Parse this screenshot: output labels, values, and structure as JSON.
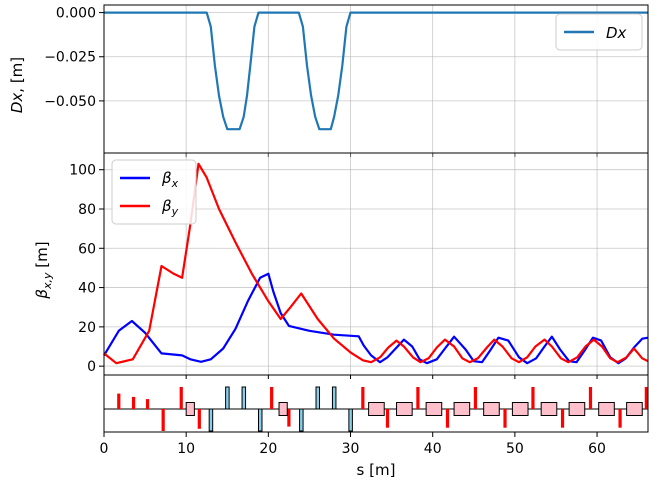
{
  "chart_data": [
    {
      "type": "line",
      "ylabel": "Dx, [m]",
      "ylabel_var": "Dx",
      "ylabel_unit": ", [m]",
      "xlim": [
        0,
        66.2
      ],
      "ylim": [
        -0.0795,
        0.0043
      ],
      "yticks": [
        0.0,
        -0.025,
        -0.05
      ],
      "ytick_labels": [
        "0.000",
        "−0.025",
        "−0.050"
      ],
      "grid": true,
      "legend_position": "upper-right",
      "series": [
        {
          "name": "Dx",
          "color": "#1f77b4",
          "x": [
            0,
            12.5,
            13.0,
            13.5,
            14.0,
            14.5,
            15.0,
            15.5,
            16.0,
            16.5,
            17.0,
            17.4,
            17.8,
            18.3,
            18.8,
            19.3,
            23.7,
            24.2,
            24.7,
            25.2,
            25.7,
            26.2,
            26.7,
            27.2,
            27.6,
            28.0,
            28.5,
            29.0,
            29.5,
            30.0,
            66.2
          ],
          "y": [
            0,
            0,
            -0.008,
            -0.03,
            -0.047,
            -0.059,
            -0.066,
            -0.066,
            -0.066,
            -0.066,
            -0.059,
            -0.047,
            -0.03,
            -0.008,
            0,
            0,
            0,
            -0.008,
            -0.03,
            -0.047,
            -0.059,
            -0.066,
            -0.066,
            -0.066,
            -0.066,
            -0.059,
            -0.047,
            -0.03,
            -0.008,
            0,
            0
          ]
        }
      ]
    },
    {
      "type": "line",
      "ylabel": "βx,y [m]",
      "xlim": [
        0,
        66.2
      ],
      "ylim": [
        -4.5,
        108.5
      ],
      "yticks": [
        0,
        20,
        40,
        60,
        80,
        100
      ],
      "ytick_labels": [
        "0",
        "20",
        "40",
        "60",
        "80",
        "100"
      ],
      "grid": true,
      "legend_position": "upper-left",
      "series": [
        {
          "name": "βx",
          "label_sub": "x",
          "color": "#0000ff",
          "x": [
            0,
            1.8,
            3.4,
            5.0,
            7.0,
            9.5,
            10.5,
            11.8,
            13.0,
            14.5,
            16.0,
            17.5,
            19.0,
            20.0,
            20.6,
            21.5,
            22.5,
            25.0,
            28.0,
            31.0,
            31.6,
            32.5,
            33.6,
            34.5,
            35.5,
            36.5,
            37.5,
            38.4,
            39.3,
            40.5,
            41.5,
            42.6,
            44.0,
            45.0,
            46.0,
            47.0,
            48.0,
            49.2,
            50.5,
            51.5,
            52.6,
            53.6,
            54.5,
            55.5,
            56.6,
            57.5,
            58.5,
            59.5,
            60.5,
            61.6,
            62.6,
            63.5,
            64.5,
            65.5,
            66.2
          ],
          "y": [
            5.5,
            18.0,
            23.0,
            17.0,
            6.5,
            5.5,
            3.5,
            2.2,
            3.5,
            9.0,
            19.0,
            33.0,
            45.0,
            47.0,
            38.0,
            27.0,
            20.5,
            18.0,
            16.0,
            15.2,
            10.5,
            5.5,
            2.0,
            4.5,
            9.0,
            13.5,
            10.0,
            3.5,
            1.5,
            3.5,
            9.0,
            15.0,
            8.5,
            2.5,
            2.0,
            8.0,
            14.5,
            13.0,
            4.5,
            1.5,
            4.0,
            10.0,
            15.0,
            8.5,
            2.5,
            2.0,
            8.0,
            14.5,
            13.0,
            4.5,
            1.5,
            4.0,
            9.5,
            14.0,
            14.5
          ]
        },
        {
          "name": "βy",
          "label_sub": "y",
          "color": "#ff0000",
          "x": [
            0,
            1.5,
            3.5,
            5.5,
            7.0,
            8.5,
            9.5,
            10.5,
            11.5,
            12.5,
            14.0,
            16.0,
            18.0,
            20.0,
            21.5,
            22.7,
            24.0,
            26.0,
            28.0,
            30.0,
            31.5,
            32.5,
            33.6,
            34.6,
            35.6,
            36.5,
            37.6,
            38.5,
            39.5,
            40.5,
            41.5,
            42.6,
            43.6,
            44.5,
            45.5,
            46.6,
            47.5,
            48.5,
            49.6,
            50.5,
            51.5,
            52.5,
            53.6,
            54.5,
            55.6,
            56.5,
            57.6,
            58.6,
            59.6,
            60.6,
            61.6,
            62.5,
            63.6,
            64.5,
            65.5,
            66.2
          ],
          "y": [
            6.5,
            1.5,
            3.5,
            18.0,
            51.0,
            47.0,
            45.0,
            72.0,
            103.0,
            96.0,
            80.0,
            63.0,
            47.0,
            33.0,
            24.0,
            30.0,
            37.0,
            24.0,
            14.0,
            7.0,
            3.0,
            2.0,
            4.5,
            9.5,
            13.0,
            10.0,
            4.5,
            2.0,
            4.0,
            9.5,
            13.5,
            10.0,
            4.0,
            2.0,
            4.0,
            9.5,
            13.5,
            10.0,
            4.0,
            2.0,
            4.5,
            10.0,
            13.5,
            10.0,
            4.0,
            2.0,
            4.5,
            10.0,
            13.5,
            10.0,
            4.0,
            2.0,
            4.5,
            9.0,
            4.0,
            2.5
          ]
        }
      ]
    },
    {
      "type": "lattice",
      "xlabel": "s [m]",
      "xlim": [
        0,
        66.2
      ],
      "xticks": [
        0,
        10,
        20,
        30,
        40,
        50,
        60
      ],
      "xtick_labels": [
        "0",
        "10",
        "20",
        "30",
        "40",
        "50",
        "60"
      ],
      "colors": {
        "quad": "#ff0000",
        "bend": "#ffc0cb",
        "sext": "#87ceeb"
      },
      "quads": [
        {
          "s": 1.8,
          "k": 0.7
        },
        {
          "s": 3.6,
          "k": 0.55
        },
        {
          "s": 5.3,
          "k": 0.45
        },
        {
          "s": 7.2,
          "k": -1.0
        },
        {
          "s": 9.4,
          "k": 1.0
        },
        {
          "s": 11.6,
          "k": -0.9
        },
        {
          "s": 20.4,
          "k": 1.0
        },
        {
          "s": 22.5,
          "k": -0.8
        },
        {
          "s": 31.5,
          "k": 1.0
        },
        {
          "s": 34.5,
          "k": -0.85
        },
        {
          "s": 38.2,
          "k": 1.0
        },
        {
          "s": 41.8,
          "k": -0.85
        },
        {
          "s": 45.2,
          "k": 1.0
        },
        {
          "s": 48.8,
          "k": -0.85
        },
        {
          "s": 52.2,
          "k": 1.0
        },
        {
          "s": 55.8,
          "k": -0.85
        },
        {
          "s": 59.2,
          "k": 1.0
        },
        {
          "s": 62.8,
          "k": -0.85
        },
        {
          "s": 66.0,
          "k": 1.0
        }
      ],
      "bends": [
        {
          "s0": 10.0,
          "s1": 11.0
        },
        {
          "s0": 21.3,
          "s1": 22.3
        },
        {
          "s0": 32.2,
          "s1": 34.1
        },
        {
          "s0": 35.6,
          "s1": 37.5
        },
        {
          "s0": 39.2,
          "s1": 41.1
        },
        {
          "s0": 42.6,
          "s1": 44.5
        },
        {
          "s0": 46.2,
          "s1": 48.1
        },
        {
          "s0": 49.7,
          "s1": 51.6
        },
        {
          "s0": 53.2,
          "s1": 55.1
        },
        {
          "s0": 56.6,
          "s1": 58.5
        },
        {
          "s0": 60.2,
          "s1": 62.1
        },
        {
          "s0": 63.6,
          "s1": 65.5
        }
      ],
      "sexts": [
        {
          "s0": 12.8,
          "s1": 13.2,
          "dir": -1
        },
        {
          "s0": 14.8,
          "s1": 15.2,
          "dir": 1
        },
        {
          "s0": 16.8,
          "s1": 17.2,
          "dir": 1
        },
        {
          "s0": 18.8,
          "s1": 19.2,
          "dir": -1
        },
        {
          "s0": 23.8,
          "s1": 24.2,
          "dir": -1
        },
        {
          "s0": 25.8,
          "s1": 26.2,
          "dir": 1
        },
        {
          "s0": 27.8,
          "s1": 28.2,
          "dir": 1
        },
        {
          "s0": 29.8,
          "s1": 30.2,
          "dir": -1
        }
      ]
    }
  ]
}
